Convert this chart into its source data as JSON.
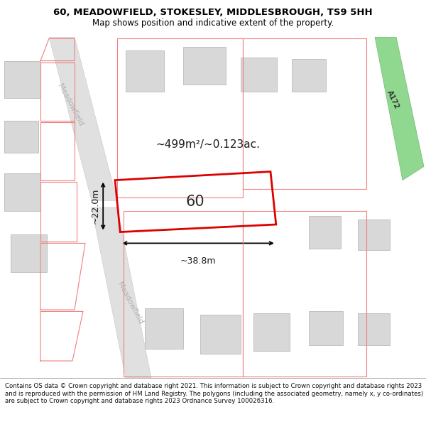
{
  "title": "60, MEADOWFIELD, STOKESLEY, MIDDLESBROUGH, TS9 5HH",
  "subtitle": "Map shows position and indicative extent of the property.",
  "footer": "Contains OS data © Crown copyright and database right 2021. This information is subject to Crown copyright and database rights 2023 and is reproduced with the permission of HM Land Registry. The polygons (including the associated geometry, namely x, y co-ordinates) are subject to Crown copyright and database rights 2023 Ordnance Survey 100026316.",
  "area_label": "~499m²/~0.123ac.",
  "number_label": "60",
  "width_label": "~38.8m",
  "height_label": "~22.0m",
  "map_bg": "#ffffff",
  "building_color": "#d8d8d8",
  "building_outline": "#b0b0b0",
  "road_color": "#e0e0e0",
  "road_edge": "#c8c8c8",
  "subject_color": "#dd0000",
  "parcel_color": "#f08080",
  "road_label_color": "#b0b0b0",
  "a172_fill": "#90d890",
  "a172_edge": "#70b870",
  "a172_label": "A172",
  "street_label": "Meadowfield",
  "title_fontsize": 9.5,
  "subtitle_fontsize": 8.5,
  "footer_fontsize": 6.2
}
